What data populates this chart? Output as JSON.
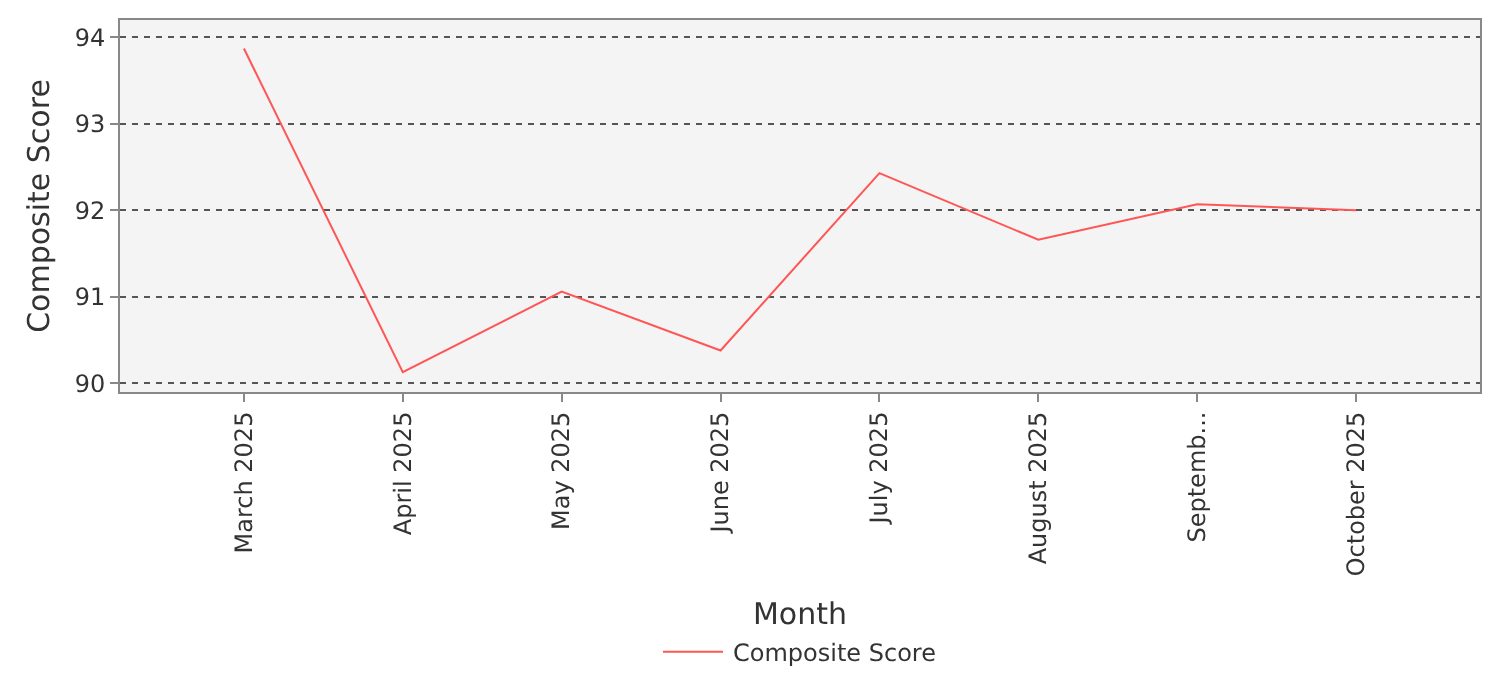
{
  "chart_data": {
    "type": "line",
    "xlabel": "Month",
    "ylabel": "Composite Score",
    "categories": [
      "March 2025",
      "April 2025",
      "May 2025",
      "June 2025",
      "July 2025",
      "August 2025",
      "Septemb...",
      "October 2025"
    ],
    "series": [
      {
        "name": "Composite Score",
        "color": "#ff5555",
        "values": [
          93.87,
          90.13,
          91.06,
          90.38,
          92.43,
          91.66,
          92.07,
          92.0
        ]
      }
    ],
    "ylim": [
      89.9,
      94.2
    ],
    "yticks": [
      90,
      91,
      92,
      93,
      94
    ],
    "grid": "y",
    "legend": "bottom",
    "marker": "none",
    "line_style": "solid"
  }
}
